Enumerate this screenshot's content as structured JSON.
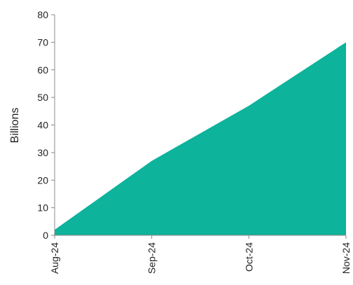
{
  "chart_data": {
    "type": "area",
    "categories": [
      "Aug-24",
      "Sep-24",
      "Oct-24",
      "Nov-24"
    ],
    "series": [
      {
        "values": [
          2,
          27,
          47,
          70
        ]
      }
    ],
    "xlabel": "",
    "ylabel": "Billions",
    "ylim": [
      0,
      80
    ],
    "yticks": [
      0,
      10,
      20,
      30,
      40,
      50,
      60,
      70,
      80
    ],
    "grid": false,
    "fill_color": "#0db39b",
    "axis_color": "#888888"
  }
}
